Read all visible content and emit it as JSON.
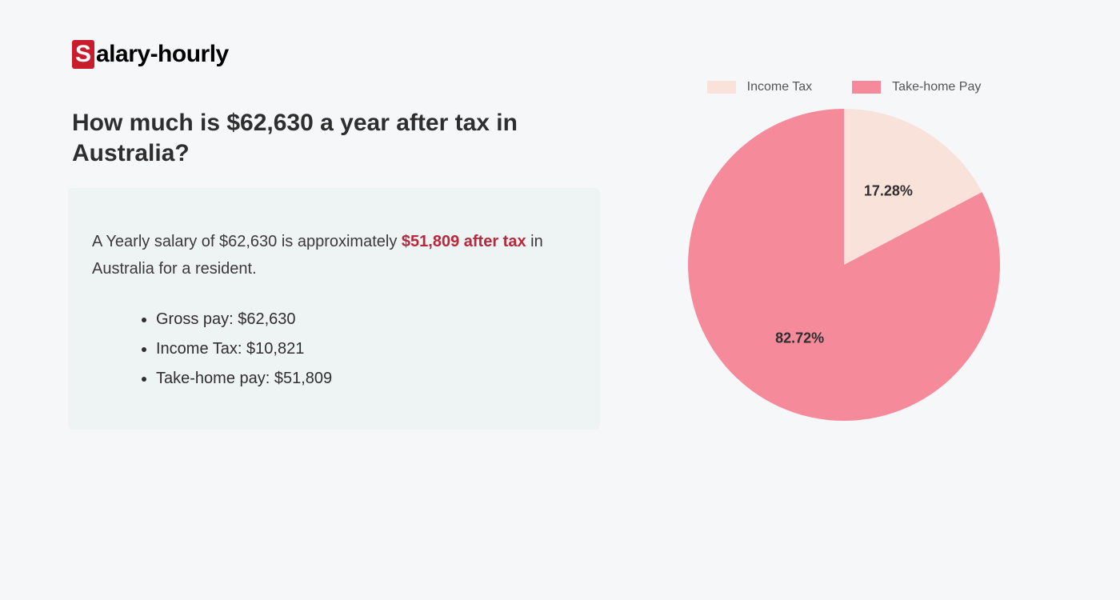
{
  "logo": {
    "initial": "S",
    "rest": "alary-hourly",
    "initial_bg": "#c91d2e",
    "initial_fg": "#ffffff",
    "text_color": "#000000"
  },
  "heading": "How much is $62,630 a year after tax in Australia?",
  "info": {
    "prefix": "A Yearly salary of $62,630 is approximately ",
    "highlight": "$51,809 after tax",
    "suffix": " in Australia for a resident.",
    "highlight_color": "#b8273a",
    "box_bg": "#eef3f4",
    "bullets": [
      "Gross pay: $62,630",
      "Income Tax: $10,821",
      "Take-home pay: $51,809"
    ]
  },
  "chart": {
    "type": "pie",
    "radius": 195,
    "slices": [
      {
        "label": "Income Tax",
        "value": 17.28,
        "display": "17.28%",
        "color": "#f9e2da"
      },
      {
        "label": "Take-home Pay",
        "value": 82.72,
        "display": "82.72%",
        "color": "#f58a9b"
      }
    ],
    "start_angle_deg": -90,
    "legend_swatch_w": 36,
    "legend_swatch_h": 16,
    "legend_font_size": 16,
    "label_font_size": 18,
    "label_color": "#2e2e2e"
  },
  "page_bg": "#f6f7f8"
}
